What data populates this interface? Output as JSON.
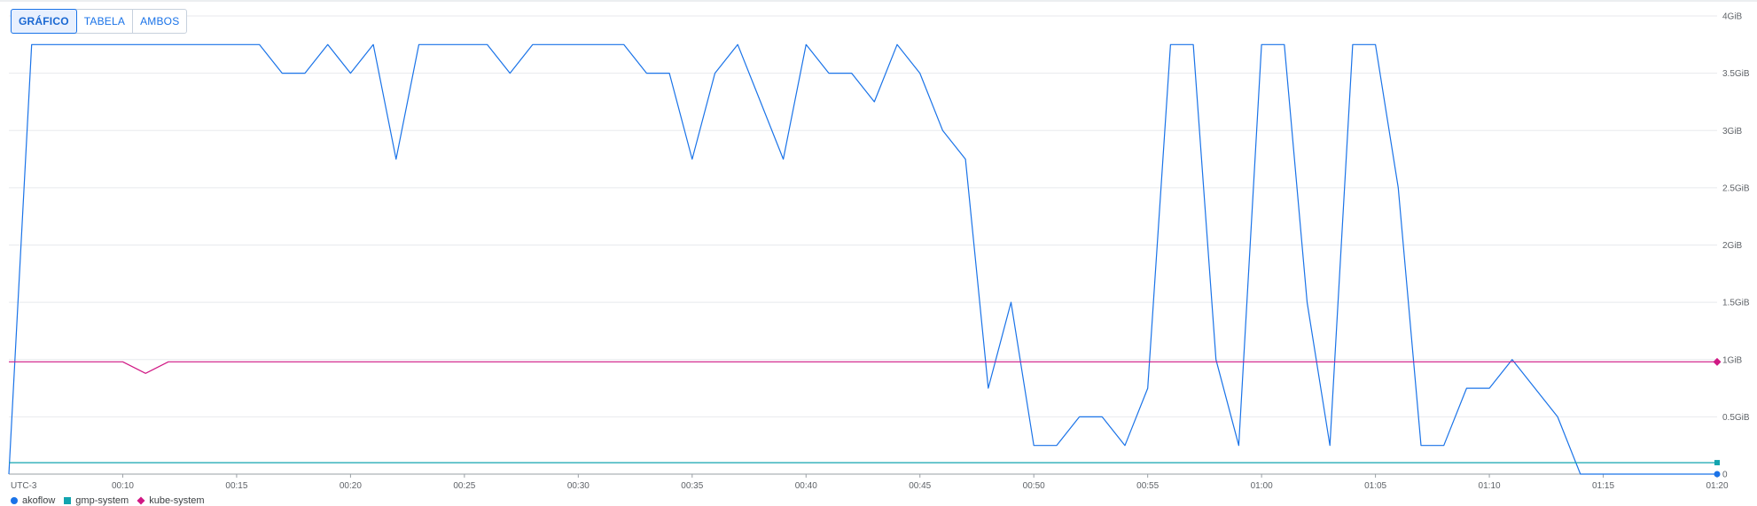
{
  "view_tabs": [
    {
      "label": "GRÁFICO",
      "active": true
    },
    {
      "label": "TABELA",
      "active": false
    },
    {
      "label": "AMBOS",
      "active": false
    }
  ],
  "timezone_label": "UTC-3",
  "chart_data": {
    "type": "line",
    "x_unit": "minutes since 00:00 (UTC-3)",
    "x_ticks": [
      "00:10",
      "00:15",
      "00:20",
      "00:25",
      "00:30",
      "00:35",
      "00:40",
      "00:45",
      "00:50",
      "00:55",
      "01:00",
      "01:05",
      "01:10",
      "01:15",
      "01:20"
    ],
    "xlim": [
      "00:05",
      "01:20"
    ],
    "y_ticks": [
      "0",
      "0.5GiB",
      "1GiB",
      "1.5GiB",
      "2GiB",
      "2.5GiB",
      "3GiB",
      "3.5GiB",
      "4GiB"
    ],
    "ylim": [
      0,
      4
    ],
    "y_unit": "GiB",
    "y_axis_position": "right",
    "grid": true,
    "legend_position": "bottom-left",
    "series": [
      {
        "name": "akoflow",
        "color": "#1a73e8",
        "marker": "circle",
        "x": [
          "00:05",
          "00:06",
          "00:07",
          "00:08",
          "00:09",
          "00:10",
          "00:11",
          "00:12",
          "00:13",
          "00:14",
          "00:15",
          "00:16",
          "00:17",
          "00:18",
          "00:19",
          "00:20",
          "00:21",
          "00:22",
          "00:23",
          "00:24",
          "00:25",
          "00:26",
          "00:27",
          "00:28",
          "00:29",
          "00:30",
          "00:31",
          "00:32",
          "00:33",
          "00:34",
          "00:35",
          "00:36",
          "00:37",
          "00:38",
          "00:39",
          "00:40",
          "00:41",
          "00:42",
          "00:43",
          "00:44",
          "00:45",
          "00:46",
          "00:47",
          "00:48",
          "00:49",
          "00:50",
          "00:51",
          "00:52",
          "00:53",
          "00:54",
          "00:55",
          "00:56",
          "00:57",
          "00:58",
          "00:59",
          "01:00",
          "01:01",
          "01:02",
          "01:03",
          "01:04",
          "01:05",
          "01:06",
          "01:07",
          "01:08",
          "01:09",
          "01:10",
          "01:11",
          "01:12",
          "01:13",
          "01:14",
          "01:15",
          "01:16",
          "01:17",
          "01:18",
          "01:19",
          "01:20"
        ],
        "values": [
          0,
          3.75,
          3.75,
          3.75,
          3.75,
          3.75,
          3.75,
          3.75,
          3.75,
          3.75,
          3.75,
          3.75,
          3.5,
          3.5,
          3.75,
          3.5,
          3.75,
          2.75,
          3.75,
          3.75,
          3.75,
          3.75,
          3.5,
          3.75,
          3.75,
          3.75,
          3.75,
          3.75,
          3.5,
          3.5,
          2.75,
          3.5,
          3.75,
          3.25,
          2.75,
          3.75,
          3.5,
          3.5,
          3.25,
          3.75,
          3.5,
          3.0,
          2.75,
          0.75,
          1.5,
          0.25,
          0.25,
          0.5,
          0.5,
          0.25,
          0.75,
          3.75,
          3.75,
          1.0,
          0.25,
          3.75,
          3.75,
          1.5,
          0.25,
          3.75,
          3.75,
          2.5,
          0.25,
          0.25,
          0.75,
          0.75,
          1.0,
          0.75,
          0.5,
          0,
          0,
          0,
          0,
          0,
          0,
          0
        ]
      },
      {
        "name": "gmp-system",
        "color": "#12a4af",
        "marker": "square",
        "x": [
          "00:05",
          "01:20"
        ],
        "values": [
          0.1,
          0.1
        ]
      },
      {
        "name": "kube-system",
        "color": "#d01884",
        "marker": "diamond",
        "x": [
          "00:05",
          "00:10",
          "00:11",
          "00:12",
          "01:20"
        ],
        "values": [
          0.98,
          0.98,
          0.88,
          0.98,
          0.98
        ]
      }
    ]
  }
}
